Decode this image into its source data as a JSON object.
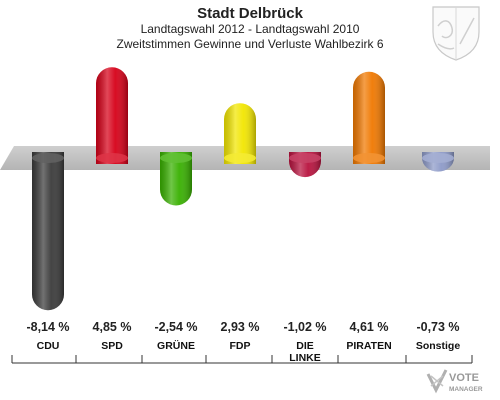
{
  "header": {
    "title": "Stadt Delbrück",
    "subtitle": "Landtagswahl 2012 - Landtagswahl 2010",
    "subtitle2": "Zweitstimmen Gewinne und Verluste Wahlbezirk 6"
  },
  "watermark": {
    "line1": "VOTE",
    "line2": "MANAGER"
  },
  "chart_data": {
    "type": "bar",
    "title": "Stadt Delbrück",
    "subtitle": "Landtagswahl 2012 - Landtagswahl 2010 / Zweitstimmen Gewinne und Verluste Wahlbezirk 6",
    "categories": [
      "CDU",
      "SPD",
      "GRÜNE",
      "FDP",
      "DIE LINKE",
      "PIRATEN",
      "Sonstige"
    ],
    "values": [
      -8.14,
      4.85,
      -2.54,
      2.93,
      -1.02,
      4.61,
      -0.73
    ],
    "value_labels": [
      "-8,14 %",
      "4,85 %",
      "-2,54 %",
      "2,93 %",
      "-1,02 %",
      "4,61 %",
      "-0,73 %"
    ],
    "colors": [
      "#3a3a3a",
      "#d60018",
      "#38b000",
      "#f2e600",
      "#b8123e",
      "#f07800",
      "#8d9ac8"
    ],
    "ylim": [
      -8.14,
      4.85
    ],
    "grid": false,
    "legend": "none"
  }
}
